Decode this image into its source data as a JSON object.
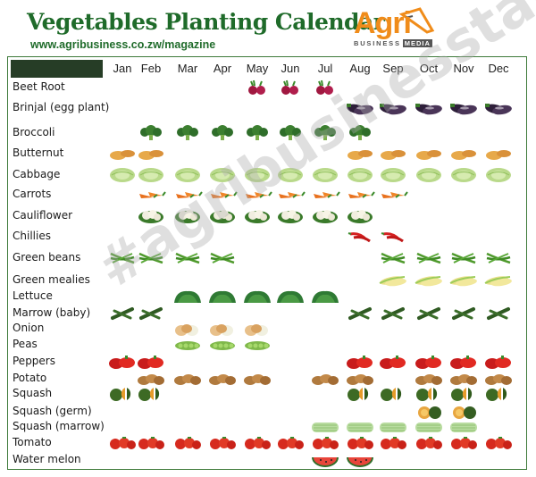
{
  "header": {
    "title": "Vegetables Planting Calendar",
    "url": "www.agribusiness.co.zw/magazine"
  },
  "logo": {
    "agri": "Agri",
    "sub": "BUSINESS",
    "media": "MEDIA"
  },
  "months": [
    "Jan",
    "Feb",
    "Mar",
    "Apr",
    "May",
    "Jun",
    "Jul",
    "Aug",
    "Sep",
    "Oct",
    "Nov",
    "Dec"
  ],
  "watermark": "#agribusinesstalk",
  "colors": {
    "title_green": "#1f6b2a",
    "frame_green": "#3e7a3a",
    "logo_orange": "#f08c1a"
  },
  "rows": [
    {
      "label": "Beet Root",
      "icon": "beetroot-icon",
      "months": [
        5,
        6,
        7
      ]
    },
    {
      "label": "Brinjal (egg plant)",
      "icon": "eggplant-icon",
      "months": [
        8,
        9,
        10,
        11,
        12
      ]
    },
    {
      "label": "Broccoli",
      "icon": "broccoli-icon",
      "months": [
        2,
        3,
        4,
        5,
        6,
        7,
        8
      ]
    },
    {
      "label": "Butternut",
      "icon": "butternut-icon",
      "months": [
        1,
        2,
        8,
        9,
        10,
        11,
        12
      ]
    },
    {
      "label": "Cabbage",
      "icon": "cabbage-icon",
      "months": [
        1,
        2,
        3,
        4,
        5,
        6,
        7,
        8,
        9,
        10,
        11,
        12
      ]
    },
    {
      "label": "Carrots",
      "icon": "carrot-icon",
      "months": [
        2,
        3,
        4,
        5,
        6,
        7,
        8,
        9
      ]
    },
    {
      "label": "Cauliflower",
      "icon": "cauliflower-icon",
      "months": [
        2,
        3,
        4,
        5,
        6,
        7,
        8
      ]
    },
    {
      "label": "Chillies",
      "icon": "chilli-icon",
      "months": [
        8,
        9
      ]
    },
    {
      "label": "Green beans",
      "icon": "green-beans-icon",
      "months": [
        1,
        2,
        3,
        4,
        9,
        10,
        11,
        12
      ]
    },
    {
      "label": "Green mealies",
      "icon": "mealie-icon",
      "months": [
        9,
        10,
        11,
        12
      ]
    },
    {
      "label": "Lettuce",
      "icon": "lettuce-icon",
      "months": [
        3,
        4,
        5,
        6,
        7
      ]
    },
    {
      "label": "Marrow (baby)",
      "icon": "marrow-baby-icon",
      "months": [
        1,
        2,
        8,
        9,
        10,
        11,
        12
      ]
    },
    {
      "label": "Onion",
      "icon": "onion-icon",
      "months": [
        3,
        4,
        5
      ]
    },
    {
      "label": "Peas",
      "icon": "peas-icon",
      "months": [
        3,
        4,
        5
      ]
    },
    {
      "label": "Peppers",
      "icon": "pepper-icon",
      "months": [
        1,
        2,
        8,
        9,
        10,
        11,
        12
      ]
    },
    {
      "label": "Potato",
      "icon": "potato-icon",
      "months": [
        2,
        3,
        4,
        5,
        7,
        8,
        10,
        11,
        12
      ]
    },
    {
      "label": "Squash",
      "icon": "squash-icon",
      "months": [
        1,
        2,
        8,
        9,
        10,
        11,
        12
      ]
    },
    {
      "label": "Squash (germ)",
      "icon": "squash-germ-icon",
      "months": [
        10,
        11
      ]
    },
    {
      "label": "Squash (marrow)",
      "icon": "squash-marrow-icon",
      "months": [
        7,
        8,
        9,
        10,
        11
      ]
    },
    {
      "label": "Tomato",
      "icon": "tomato-icon",
      "months": [
        1,
        2,
        3,
        4,
        5,
        6,
        7,
        8,
        9,
        10,
        11,
        12
      ]
    },
    {
      "label": "Water melon",
      "icon": "watermelon-icon",
      "months": [
        7,
        8
      ]
    }
  ]
}
